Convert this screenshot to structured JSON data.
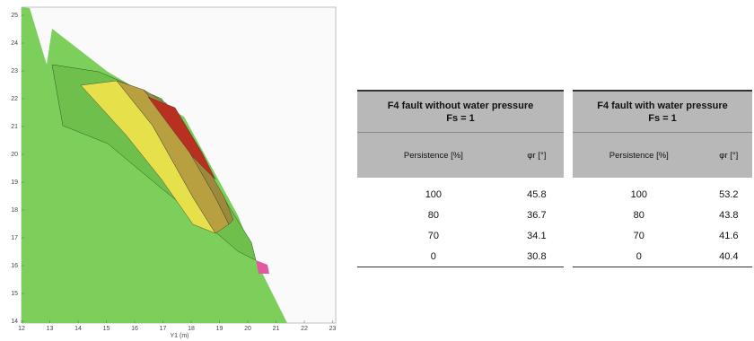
{
  "figure": {
    "y_ticks": [
      "25",
      "24",
      "23",
      "22",
      "21",
      "20",
      "19",
      "18",
      "17",
      "16",
      "15",
      "14"
    ],
    "x_ticks": [
      "12",
      "13",
      "14",
      "15",
      "16",
      "17",
      "18",
      "19",
      "20",
      "21",
      "22",
      "23"
    ],
    "x_label": "Y1 (m)"
  },
  "tables": [
    {
      "title": "F4 fault without water pressure",
      "subtitle": "Fs = 1",
      "columns": [
        "Persistence [%]",
        "φr [°]"
      ],
      "rows": [
        [
          100,
          45.8
        ],
        [
          80,
          36.7
        ],
        [
          70,
          34.1
        ],
        [
          0,
          30.8
        ]
      ]
    },
    {
      "title": "F4 fault with water pressure",
      "subtitle": "Fs = 1",
      "columns": [
        "Persistence [%]",
        "φr [°]"
      ],
      "rows": [
        [
          100,
          53.2
        ],
        [
          80,
          43.8
        ],
        [
          70,
          41.6
        ],
        [
          0,
          40.4
        ]
      ]
    }
  ]
}
